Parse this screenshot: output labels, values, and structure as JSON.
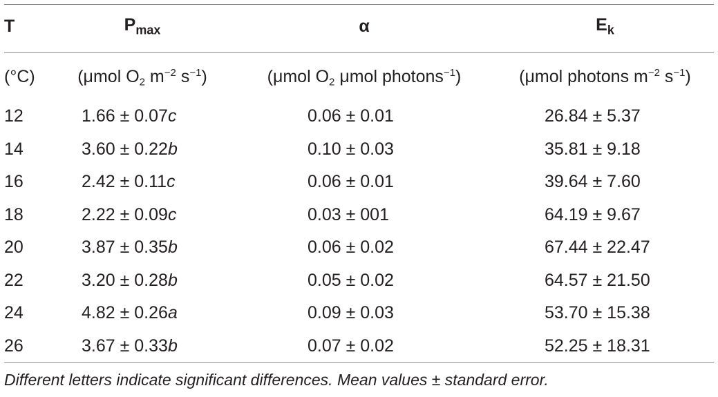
{
  "header": {
    "col_t": "T",
    "col_pmax_main": "P",
    "col_pmax_sub": "max",
    "col_alpha": "α",
    "col_ek_main": "E",
    "col_ek_sub": "k"
  },
  "units": {
    "t": "(°C)",
    "pmax_a": "(μmol O",
    "pmax_b": "2",
    "pmax_c": " m",
    "pmax_d": "−2",
    "pmax_e": " s",
    "pmax_f": "−1",
    "pmax_g": ")",
    "alpha_a": "(μmol O",
    "alpha_b": "2",
    "alpha_c": " μmol photons",
    "alpha_d": "−1",
    "alpha_e": ")",
    "ek_a": "(μmol photons m",
    "ek_b": "−2",
    "ek_c": " s",
    "ek_d": "−1",
    "ek_e": ")"
  },
  "rows": [
    {
      "t": "12",
      "pmax": "1.66 ± 0.07",
      "pmax_letter": "c",
      "alpha": "0.06 ± 0.01",
      "ek": "26.84 ± 5.37"
    },
    {
      "t": "14",
      "pmax": "3.60 ± 0.22",
      "pmax_letter": "b",
      "alpha": "0.10 ± 0.03",
      "ek": "35.81 ± 9.18"
    },
    {
      "t": "16",
      "pmax": "2.42 ± 0.11",
      "pmax_letter": "c",
      "alpha": "0.06 ± 0.01",
      "ek": "39.64 ± 7.60"
    },
    {
      "t": "18",
      "pmax": "2.22 ± 0.09",
      "pmax_letter": "c",
      "alpha": "0.03 ± 001",
      "ek": "64.19 ± 9.67"
    },
    {
      "t": "20",
      "pmax": "3.87 ± 0.35",
      "pmax_letter": "b",
      "alpha": "0.06 ± 0.02",
      "ek": "67.44 ± 22.47"
    },
    {
      "t": "22",
      "pmax": "3.20 ± 0.28",
      "pmax_letter": "b",
      "alpha": "0.05 ± 0.02",
      "ek": "64.57 ± 21.50"
    },
    {
      "t": "24",
      "pmax": "4.82 ± 0.26",
      "pmax_letter": "a",
      "alpha": "0.09 ± 0.03",
      "ek": "53.70 ± 15.38"
    },
    {
      "t": "26",
      "pmax": "3.67 ± 0.33",
      "pmax_letter": "b",
      "alpha": "0.07 ± 0.02",
      "ek": "52.25 ± 18.31"
    }
  ],
  "footnote": "Different letters indicate significant differences. Mean values ± standard error."
}
